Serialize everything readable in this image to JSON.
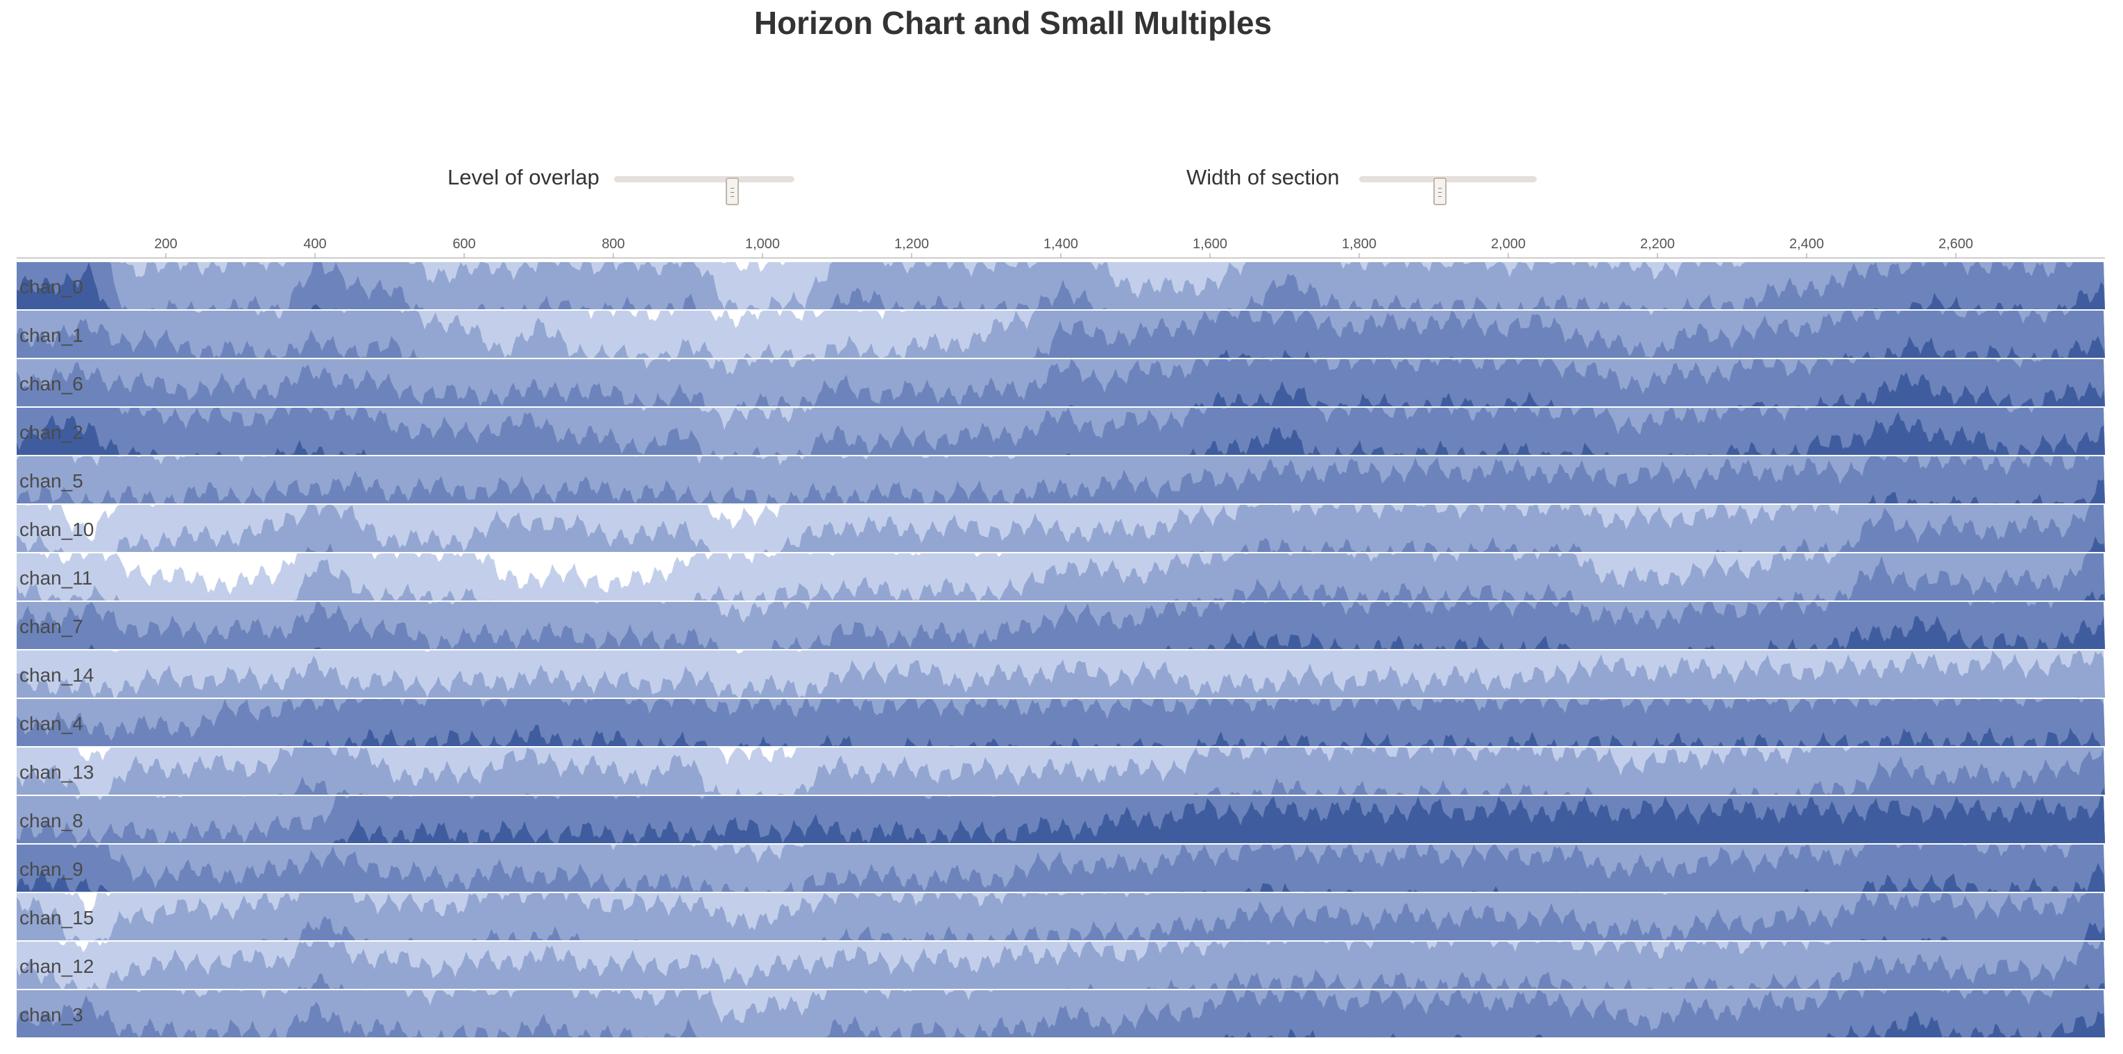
{
  "title": "Horizon Chart and Small Multiples",
  "controls": {
    "overlap": {
      "label": "Level of overlap",
      "value": 0.67
    },
    "width": {
      "label": "Width of section",
      "value": 0.45
    }
  },
  "colors": {
    "band1": "#c3cfea",
    "band2": "#93a6d1",
    "band3": "#6c84bb",
    "band4": "#3f5d9e",
    "band5": "#1e3d80",
    "separator": "#ffffff",
    "axis": "#999999"
  },
  "chart_data": {
    "type": "horizon",
    "title": "Horizon Chart and Small Multiples",
    "xlabel": "",
    "ylabel": "",
    "xlim": [
      0,
      2800
    ],
    "x_ticks": [
      200,
      400,
      600,
      800,
      1000,
      1200,
      1400,
      1600,
      1800,
      2000,
      2200,
      2400,
      2600
    ],
    "x_tick_labels": [
      "200",
      "400",
      "600",
      "800",
      "1,000",
      "1,200",
      "1,400",
      "1,600",
      "1,800",
      "2,000",
      "2,200",
      "2,400",
      "2,600"
    ],
    "bands": 4,
    "band_max": 1,
    "x": [
      0,
      50,
      100,
      150,
      200,
      250,
      300,
      350,
      400,
      450,
      500,
      550,
      600,
      650,
      700,
      750,
      800,
      850,
      900,
      950,
      1000,
      1050,
      1100,
      1150,
      1200,
      1250,
      1300,
      1350,
      1400,
      1450,
      1500,
      1550,
      1600,
      1650,
      1700,
      1750,
      1800,
      1850,
      1900,
      1950,
      2000,
      2050,
      2100,
      2150,
      2200,
      2250,
      2300,
      2350,
      2400,
      2450,
      2500,
      2550,
      2600,
      2650,
      2700,
      2750,
      2800
    ],
    "series": [
      {
        "name": "chan_0",
        "values": [
          3.4,
          3.6,
          3.7,
          1.9,
          1.9,
          2.0,
          2.0,
          2.0,
          2.9,
          2.6,
          2.4,
          1.8,
          1.8,
          1.9,
          2.0,
          2.0,
          2.0,
          1.9,
          2.2,
          1.1,
          1.0,
          1.1,
          2.2,
          2.2,
          2.0,
          2.0,
          2.0,
          1.9,
          2.5,
          1.9,
          1.5,
          1.4,
          1.6,
          1.9,
          2.8,
          2.1,
          2.1,
          2.0,
          2.1,
          2.0,
          2.0,
          2.0,
          2.2,
          1.9,
          1.9,
          2.0,
          2.1,
          2.3,
          2.5,
          2.6,
          2.9,
          3.0,
          3.1,
          2.9,
          2.9,
          3.0,
          3.4
        ]
      },
      {
        "name": "chan_1",
        "values": [
          2.4,
          2.5,
          2.6,
          2.4,
          2.3,
          2.2,
          2.1,
          2.1,
          2.3,
          2.2,
          2.2,
          1.9,
          1.6,
          1.2,
          1.6,
          1.2,
          1.0,
          1.0,
          1.2,
          0.9,
          1.0,
          1.0,
          1.2,
          1.1,
          1.2,
          1.3,
          1.5,
          1.8,
          2.6,
          2.5,
          2.5,
          2.6,
          2.9,
          2.9,
          3.0,
          2.7,
          2.7,
          2.7,
          2.8,
          2.7,
          2.7,
          2.7,
          2.5,
          2.2,
          2.2,
          2.5,
          2.5,
          2.6,
          2.7,
          2.8,
          3.1,
          3.2,
          3.1,
          3.0,
          3.0,
          3.0,
          3.4
        ]
      },
      {
        "name": "chan_6",
        "values": [
          2.6,
          2.6,
          2.7,
          2.5,
          2.4,
          2.4,
          2.4,
          2.4,
          2.7,
          2.6,
          2.4,
          2.3,
          2.2,
          2.3,
          2.3,
          2.4,
          2.2,
          2.1,
          2.2,
          1.9,
          2.0,
          2.1,
          2.4,
          2.3,
          2.3,
          2.3,
          2.3,
          2.4,
          2.8,
          2.6,
          2.7,
          2.8,
          3.0,
          3.1,
          3.3,
          3.0,
          3.0,
          3.0,
          3.0,
          3.0,
          3.0,
          3.0,
          2.8,
          2.5,
          2.6,
          2.7,
          2.8,
          2.9,
          2.9,
          3.0,
          3.4,
          3.5,
          3.3,
          3.1,
          3.1,
          3.2,
          3.5
        ]
      },
      {
        "name": "chan_2",
        "values": [
          3.4,
          3.6,
          3.6,
          2.9,
          2.9,
          2.8,
          2.8,
          2.9,
          3.1,
          2.9,
          2.7,
          2.5,
          2.5,
          2.6,
          2.7,
          2.4,
          2.3,
          2.2,
          2.4,
          1.8,
          1.9,
          2.0,
          2.4,
          2.3,
          2.3,
          2.4,
          2.4,
          2.5,
          2.8,
          2.6,
          2.7,
          2.8,
          3.0,
          3.3,
          3.4,
          3.0,
          3.0,
          3.0,
          3.0,
          3.0,
          3.0,
          3.0,
          3.0,
          2.7,
          2.7,
          2.9,
          3.0,
          3.0,
          3.1,
          3.3,
          3.6,
          3.6,
          3.4,
          3.2,
          3.1,
          3.2,
          3.6
        ]
      },
      {
        "name": "chan_5",
        "values": [
          2.2,
          2.1,
          2.1,
          2.1,
          2.1,
          2.2,
          2.2,
          2.2,
          2.4,
          2.4,
          2.3,
          2.3,
          2.3,
          2.3,
          2.3,
          2.3,
          2.3,
          2.2,
          2.2,
          2.1,
          2.1,
          2.1,
          2.2,
          2.2,
          2.2,
          2.2,
          2.2,
          2.2,
          2.3,
          2.4,
          2.4,
          2.4,
          2.5,
          2.6,
          2.7,
          2.7,
          2.7,
          2.7,
          2.7,
          2.7,
          2.7,
          2.7,
          2.6,
          2.6,
          2.6,
          2.6,
          2.7,
          2.7,
          2.7,
          2.7,
          3.0,
          3.0,
          2.9,
          2.9,
          2.9,
          2.9,
          3.4
        ]
      },
      {
        "name": "chan_10",
        "values": [
          1.2,
          1.0,
          0.4,
          1.2,
          1.3,
          1.3,
          1.4,
          1.5,
          2.1,
          1.7,
          1.3,
          1.2,
          1.3,
          1.6,
          1.7,
          1.5,
          1.4,
          1.3,
          1.6,
          0.5,
          0.9,
          1.2,
          1.6,
          1.5,
          1.5,
          1.5,
          1.5,
          1.5,
          1.5,
          1.4,
          1.5,
          1.6,
          1.8,
          2.0,
          2.1,
          2.0,
          2.0,
          2.0,
          2.0,
          2.0,
          2.0,
          2.0,
          1.9,
          1.7,
          1.7,
          1.8,
          1.8,
          1.9,
          2.0,
          2.1,
          2.7,
          2.5,
          2.5,
          2.5,
          2.5,
          2.6,
          3.2
        ]
      },
      {
        "name": "chan_11",
        "values": [
          1.2,
          1.0,
          1.1,
          0.7,
          0.5,
          0.4,
          0.4,
          0.5,
          1.8,
          1.3,
          1.1,
          1.0,
          1.2,
          0.5,
          0.5,
          0.5,
          0.4,
          0.4,
          1.0,
          1.0,
          1.1,
          1.1,
          1.3,
          1.2,
          1.2,
          1.2,
          1.2,
          1.2,
          1.8,
          1.6,
          1.6,
          1.7,
          2.0,
          2.1,
          2.3,
          2.1,
          2.1,
          2.1,
          2.1,
          2.1,
          2.1,
          2.1,
          1.9,
          1.4,
          1.5,
          1.6,
          1.7,
          1.8,
          2.0,
          2.1,
          2.7,
          2.4,
          2.4,
          2.4,
          2.4,
          2.5,
          3.2
        ]
      },
      {
        "name": "chan_7",
        "values": [
          2.6,
          2.7,
          2.8,
          2.5,
          2.4,
          2.4,
          2.4,
          2.4,
          2.8,
          2.6,
          2.4,
          2.2,
          2.2,
          2.3,
          2.3,
          2.3,
          2.2,
          2.2,
          2.3,
          1.8,
          1.9,
          2.0,
          2.4,
          2.3,
          2.3,
          2.3,
          2.3,
          2.4,
          2.8,
          2.6,
          2.7,
          2.8,
          3.0,
          3.1,
          3.3,
          3.0,
          3.0,
          3.0,
          3.0,
          3.0,
          3.0,
          3.0,
          2.9,
          2.6,
          2.7,
          2.8,
          2.9,
          2.9,
          3.0,
          3.1,
          3.4,
          3.5,
          3.3,
          3.1,
          3.1,
          3.2,
          3.5
        ]
      },
      {
        "name": "chan_14",
        "values": [
          1.4,
          1.3,
          1.1,
          1.3,
          1.4,
          1.4,
          1.4,
          1.4,
          1.6,
          1.4,
          1.3,
          1.3,
          1.3,
          1.4,
          1.4,
          1.4,
          1.3,
          1.3,
          1.4,
          1.2,
          1.2,
          1.2,
          1.4,
          1.6,
          1.6,
          1.4,
          1.4,
          1.5,
          1.6,
          1.5,
          1.5,
          1.5,
          1.2,
          1.3,
          1.4,
          1.4,
          1.4,
          1.4,
          1.4,
          1.4,
          1.4,
          1.4,
          1.7,
          1.6,
          1.6,
          1.6,
          1.6,
          1.6,
          1.6,
          1.6,
          1.7,
          1.7,
          1.7,
          1.7,
          1.7,
          1.7,
          1.9
        ]
      },
      {
        "name": "chan_4",
        "values": [
          2.5,
          2.5,
          2.4,
          2.4,
          2.4,
          2.5,
          2.8,
          2.8,
          2.9,
          3.1,
          3.1,
          3.1,
          3.1,
          3.1,
          3.2,
          3.1,
          3.1,
          3.0,
          3.0,
          2.9,
          2.9,
          2.9,
          3.0,
          2.9,
          2.9,
          2.9,
          2.9,
          2.9,
          2.9,
          2.9,
          2.9,
          2.9,
          3.0,
          3.0,
          3.0,
          3.0,
          3.0,
          3.0,
          3.0,
          3.0,
          3.0,
          3.0,
          3.0,
          3.0,
          3.0,
          3.0,
          3.0,
          3.0,
          3.0,
          3.0,
          3.1,
          3.1,
          3.1,
          3.1,
          3.1,
          3.1,
          3.2
        ]
      },
      {
        "name": "chan_13",
        "values": [
          1.5,
          1.4,
          0.8,
          1.5,
          1.6,
          1.6,
          1.6,
          1.7,
          2.3,
          1.9,
          1.5,
          1.4,
          1.4,
          1.7,
          1.8,
          1.6,
          1.5,
          1.4,
          1.7,
          0.9,
          0.8,
          1.1,
          1.6,
          1.5,
          1.5,
          1.5,
          1.5,
          1.5,
          1.5,
          1.5,
          1.5,
          1.6,
          1.9,
          2.0,
          2.1,
          2.0,
          2.0,
          2.0,
          2.0,
          2.0,
          2.0,
          2.0,
          1.9,
          1.7,
          1.7,
          1.8,
          1.9,
          1.9,
          2.0,
          2.1,
          2.5,
          2.5,
          2.4,
          2.4,
          2.4,
          2.5,
          3.1
        ]
      },
      {
        "name": "chan_8",
        "values": [
          2.3,
          2.2,
          2.2,
          2.2,
          2.2,
          2.2,
          2.3,
          2.3,
          2.5,
          3.2,
          3.2,
          3.2,
          3.2,
          3.2,
          3.2,
          3.2,
          3.2,
          3.2,
          3.2,
          3.3,
          3.3,
          3.3,
          3.3,
          3.2,
          3.2,
          3.2,
          3.2,
          3.3,
          3.3,
          3.4,
          3.5,
          3.6,
          3.7,
          3.7,
          3.7,
          3.7,
          3.7,
          3.7,
          3.7,
          3.7,
          3.7,
          3.7,
          3.7,
          3.7,
          3.7,
          3.7,
          3.7,
          3.7,
          3.7,
          3.7,
          3.7,
          3.7,
          3.7,
          3.7,
          3.7,
          3.7,
          3.8
        ]
      },
      {
        "name": "chan_9",
        "values": [
          3.1,
          3.2,
          3.2,
          2.4,
          2.4,
          2.4,
          2.4,
          2.4,
          2.8,
          2.6,
          2.5,
          2.3,
          2.3,
          2.4,
          2.4,
          2.3,
          2.2,
          2.1,
          2.3,
          1.9,
          1.9,
          2.0,
          2.4,
          2.3,
          2.3,
          2.3,
          2.3,
          2.4,
          2.7,
          2.5,
          2.6,
          2.7,
          2.8,
          2.9,
          3.0,
          2.8,
          2.8,
          2.8,
          2.8,
          2.8,
          2.8,
          2.8,
          2.7,
          2.5,
          2.5,
          2.6,
          2.7,
          2.7,
          2.8,
          2.8,
          3.1,
          3.2,
          3.1,
          3.0,
          3.0,
          3.0,
          3.4
        ]
      },
      {
        "name": "chan_15",
        "values": [
          1.7,
          1.6,
          0.6,
          1.6,
          1.6,
          1.7,
          1.7,
          1.8,
          2.4,
          2.0,
          1.8,
          1.7,
          1.8,
          2.0,
          2.1,
          1.9,
          1.8,
          1.7,
          1.9,
          1.4,
          1.5,
          1.6,
          2.1,
          2.0,
          2.0,
          2.0,
          2.0,
          2.0,
          2.2,
          2.1,
          2.2,
          2.2,
          2.4,
          2.5,
          2.6,
          2.5,
          2.5,
          2.5,
          2.5,
          2.5,
          2.5,
          2.5,
          2.4,
          2.2,
          2.2,
          2.3,
          2.4,
          2.4,
          2.5,
          2.6,
          2.9,
          2.9,
          2.8,
          2.7,
          2.7,
          2.8,
          3.3
        ]
      },
      {
        "name": "chan_12",
        "values": [
          1.4,
          1.3,
          0.8,
          1.5,
          1.5,
          1.6,
          1.6,
          1.6,
          2.1,
          1.8,
          1.6,
          1.5,
          1.5,
          1.6,
          1.7,
          1.6,
          1.5,
          1.5,
          1.6,
          1.3,
          1.4,
          1.5,
          1.7,
          1.6,
          1.6,
          1.6,
          1.6,
          1.7,
          1.8,
          1.8,
          1.8,
          1.9,
          2.0,
          2.1,
          2.2,
          2.1,
          2.1,
          2.1,
          2.1,
          2.1,
          2.1,
          2.1,
          2.0,
          1.9,
          1.9,
          2.0,
          2.0,
          2.0,
          2.1,
          2.2,
          2.6,
          2.5,
          2.4,
          2.4,
          2.4,
          2.5,
          3.1
        ]
      },
      {
        "name": "chan_3",
        "values": [
          2.4,
          2.5,
          2.6,
          2.2,
          2.1,
          2.1,
          2.1,
          2.1,
          2.5,
          2.3,
          2.1,
          2.0,
          2.0,
          2.1,
          2.2,
          2.1,
          2.0,
          1.9,
          2.1,
          1.5,
          1.6,
          1.7,
          2.2,
          2.1,
          2.1,
          2.1,
          2.1,
          2.2,
          2.5,
          2.3,
          2.4,
          2.5,
          2.7,
          2.9,
          3.0,
          2.8,
          2.8,
          2.8,
          2.8,
          2.8,
          2.8,
          2.8,
          2.7,
          2.4,
          2.4,
          2.6,
          2.6,
          2.7,
          2.8,
          2.9,
          3.2,
          3.3,
          3.1,
          3.0,
          3.0,
          3.1,
          3.5
        ]
      }
    ]
  }
}
